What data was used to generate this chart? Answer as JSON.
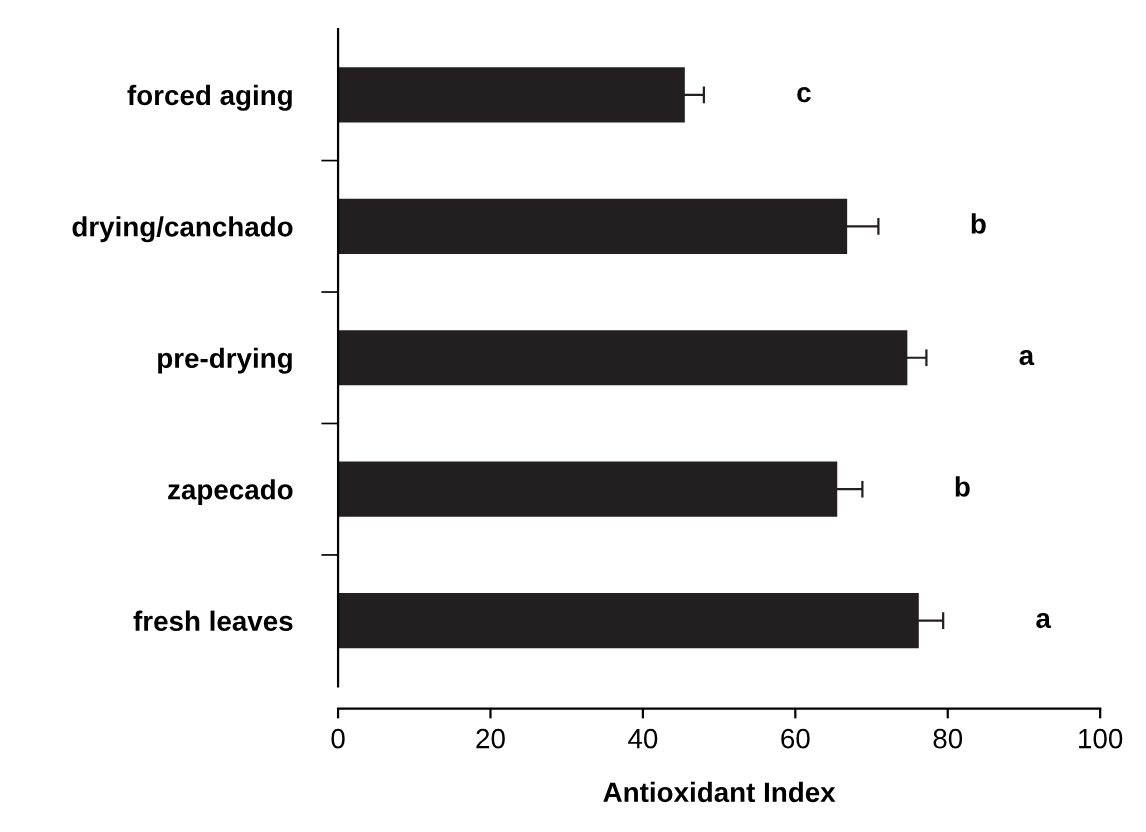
{
  "chart_data": {
    "type": "bar",
    "orientation": "horizontal",
    "xlabel": "Antioxidant Index",
    "categories": [
      "forced aging",
      "drying/canchado",
      "pre-drying",
      "zapecado",
      "fresh leaves"
    ],
    "values": [
      45.5,
      66.8,
      74.7,
      65.5,
      76.2
    ],
    "errors": [
      2.5,
      4.1,
      2.5,
      3.3,
      3.2
    ],
    "color": "#231f20",
    "xlim": [
      0,
      100
    ],
    "xticks": [
      0,
      20,
      40,
      60,
      80,
      100
    ],
    "grid": false,
    "annotations": [
      "c",
      "b",
      "a",
      "b",
      "a"
    ]
  }
}
